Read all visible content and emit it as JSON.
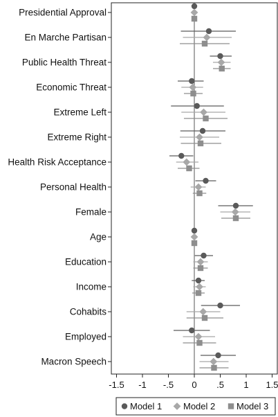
{
  "chart_data": {
    "type": "coefficient-plot",
    "title": "",
    "xlabel": "",
    "ylabel": "",
    "xlim": [
      -1.6,
      1.6
    ],
    "x_ticks": [
      -1.5,
      -1,
      -0.5,
      0,
      0.5,
      1,
      1.5
    ],
    "x_tick_labels": [
      "-1.5",
      "-1",
      "-.5",
      "0",
      ".5",
      "1",
      "1.5"
    ],
    "reference_line": 0,
    "grid": false,
    "legend_position": "bottom",
    "categories": [
      "Presidential Approval",
      "En Marche Partisan",
      "Public Health Threat",
      "Economic Threat",
      "Extreme Left",
      "Extreme Right",
      "Health Risk Acceptance",
      "Personal Health",
      "Female",
      "Age",
      "Education",
      "Income",
      "Cohabits",
      "Employed",
      "Macron Speech"
    ],
    "series": [
      {
        "name": "Model 1",
        "marker": "circle",
        "color": "#5a5a5a",
        "estimates": [
          0.0,
          0.28,
          0.5,
          -0.05,
          0.05,
          0.16,
          -0.25,
          0.22,
          0.8,
          0.0,
          0.18,
          0.08,
          0.5,
          -0.05,
          0.46
        ],
        "ci_low": [
          -0.02,
          -0.26,
          0.3,
          -0.32,
          -0.45,
          -0.27,
          -0.48,
          0.02,
          0.46,
          -0.01,
          0.01,
          -0.05,
          0.13,
          -0.4,
          0.12
        ],
        "ci_high": [
          0.02,
          0.8,
          0.72,
          0.18,
          0.57,
          0.6,
          -0.02,
          0.42,
          1.13,
          0.01,
          0.36,
          0.2,
          0.88,
          0.3,
          0.8
        ]
      },
      {
        "name": "Model 2",
        "marker": "diamond",
        "color": "#a8a8a8",
        "estimates": [
          0.0,
          0.24,
          0.52,
          -0.03,
          0.18,
          0.1,
          -0.15,
          0.08,
          0.79,
          0.0,
          0.12,
          0.1,
          0.17,
          0.08,
          0.37
        ],
        "ci_low": [
          -0.02,
          -0.22,
          0.36,
          -0.25,
          -0.25,
          -0.28,
          -0.35,
          -0.07,
          0.5,
          -0.01,
          -0.02,
          -0.02,
          -0.15,
          -0.22,
          0.1
        ],
        "ci_high": [
          0.02,
          0.72,
          0.7,
          0.17,
          0.6,
          0.48,
          0.08,
          0.22,
          1.08,
          0.01,
          0.26,
          0.22,
          0.5,
          0.4,
          0.66
        ]
      },
      {
        "name": "Model 3",
        "marker": "square",
        "color": "#8e8e8e",
        "estimates": [
          0.0,
          0.2,
          0.53,
          -0.02,
          0.22,
          0.12,
          -0.1,
          0.1,
          0.8,
          0.0,
          0.12,
          0.08,
          0.2,
          0.1,
          0.38
        ],
        "ci_low": [
          -0.02,
          -0.28,
          0.36,
          -0.2,
          -0.2,
          -0.26,
          -0.32,
          -0.03,
          0.52,
          -0.01,
          -0.02,
          -0.04,
          -0.15,
          -0.22,
          0.1
        ],
        "ci_high": [
          0.02,
          0.68,
          0.7,
          0.16,
          0.64,
          0.52,
          0.1,
          0.23,
          1.08,
          0.01,
          0.26,
          0.2,
          0.56,
          0.42,
          0.66
        ]
      }
    ]
  }
}
